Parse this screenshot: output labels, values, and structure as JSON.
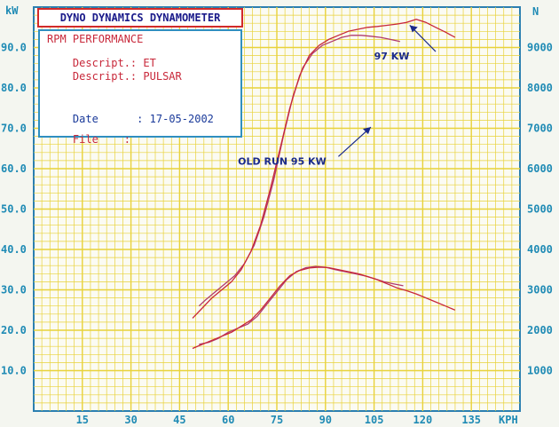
{
  "header": {
    "title": "DYNO DYNAMICS DYNAMOMETER",
    "mode": "RPM PERFORMANCE",
    "descript1_label": "Descript.:",
    "descript1_value": "ET",
    "descript2_label": "Descript.:",
    "descript2_value": "PULSAR",
    "date_label": "Date",
    "date_sep": ":",
    "date_value": "17-05-2002",
    "file_label": "File",
    "file_sep": ":"
  },
  "colors": {
    "grid": "#e8d23a",
    "axis_text": "#1f8bb5",
    "run_new": "#c8283a",
    "run_old": "#b03a6e",
    "annotation": "#1a2a8a"
  },
  "chart_data": {
    "type": "line",
    "left_unit": "kW",
    "right_unit": "N",
    "x_unit": "KPH",
    "left_ticks": [
      "10.0",
      "20.0",
      "30.0",
      "40.0",
      "50.0",
      "60.0",
      "70.0",
      "80.0",
      "90.0"
    ],
    "right_ticks": [
      "1000",
      "2000",
      "3000",
      "4000",
      "5000",
      "6000",
      "7000",
      "8000",
      "9000"
    ],
    "x_ticks": [
      "15",
      "30",
      "45",
      "60",
      "75",
      "90",
      "105",
      "120",
      "135"
    ],
    "xlim": [
      0,
      150
    ],
    "ylim_left": [
      0,
      100
    ],
    "ylim_right": [
      0,
      10000
    ],
    "grid": true,
    "annotations": [
      {
        "text": "97 KW",
        "x": 105,
        "y": 87
      },
      {
        "text": "OLD RUN 95 KW",
        "x": 63,
        "y": 61
      }
    ],
    "series": [
      {
        "axis": "right",
        "x": [
          51,
          53,
          56,
          59,
          62,
          65,
          68,
          71,
          74,
          77,
          80,
          83,
          86,
          89,
          92,
          95,
          98,
          101,
          104,
          107,
          110,
          113
        ],
        "y": [
          2600,
          2750,
          2950,
          3150,
          3350,
          3650,
          4100,
          4800,
          5700,
          6800,
          7800,
          8500,
          8850,
          9050,
          9150,
          9250,
          9300,
          9300,
          9280,
          9250,
          9200,
          9150
        ]
      },
      {
        "axis": "right",
        "x": [
          49,
          52,
          55,
          58,
          61,
          64,
          67,
          70,
          73,
          76,
          79,
          82,
          85,
          88,
          91,
          94,
          97,
          100,
          103,
          106,
          109,
          112,
          115,
          118,
          121,
          124,
          127,
          130
        ],
        "y": [
          2300,
          2550,
          2800,
          3000,
          3200,
          3500,
          3950,
          4600,
          5500,
          6500,
          7500,
          8300,
          8800,
          9050,
          9200,
          9300,
          9400,
          9450,
          9500,
          9520,
          9550,
          9580,
          9620,
          9700,
          9620,
          9500,
          9380,
          9250
        ]
      },
      {
        "axis": "left",
        "x": [
          51,
          54,
          57,
          60,
          63,
          66,
          69,
          72,
          75,
          78,
          81,
          84,
          87,
          90,
          93,
          96,
          99,
          102,
          105,
          108,
          111,
          114
        ],
        "y": [
          16.5,
          17,
          18,
          19.5,
          20.5,
          21.5,
          23.5,
          26.5,
          29.5,
          32.5,
          34.5,
          35.5,
          35.8,
          35.6,
          35,
          34.5,
          34,
          33.5,
          32.8,
          32,
          31.5,
          31
        ]
      },
      {
        "axis": "left",
        "x": [
          49,
          52,
          55,
          58,
          61,
          64,
          67,
          70,
          73,
          76,
          79,
          82,
          85,
          88,
          91,
          94,
          97,
          100,
          103,
          106,
          109,
          112,
          115,
          118,
          121,
          124,
          127,
          130
        ],
        "y": [
          15.5,
          16.5,
          17.5,
          18.5,
          19.5,
          21,
          22.5,
          25,
          28,
          31,
          33.5,
          34.8,
          35.4,
          35.6,
          35.5,
          35,
          34.5,
          34,
          33.3,
          32.5,
          31.5,
          30.5,
          29.8,
          29,
          28,
          27,
          26,
          25
        ]
      }
    ]
  }
}
